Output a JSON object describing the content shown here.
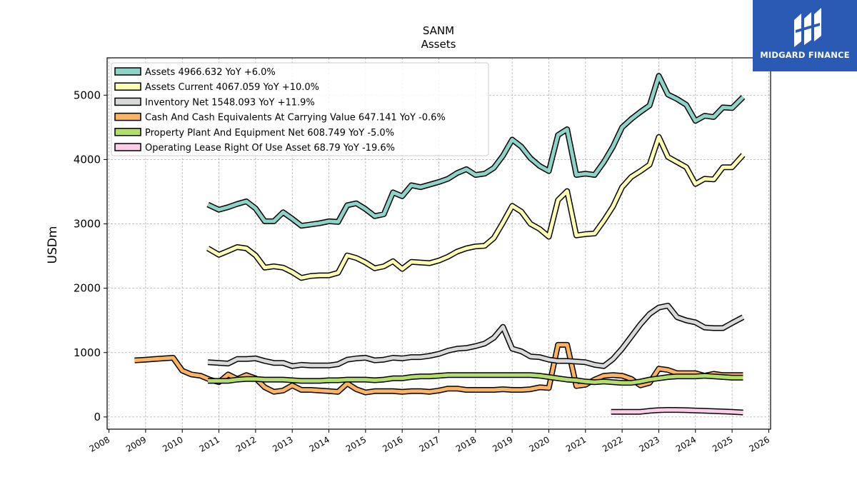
{
  "chart_data": {
    "type": "line",
    "title": "SANM",
    "subtitle": "Assets",
    "xlabel": "",
    "ylabel": "USDm",
    "xlim": [
      2007.95,
      2026.05
    ],
    "ylim": [
      -190,
      5580
    ],
    "x_ticks": [
      2008,
      2009,
      2010,
      2011,
      2012,
      2013,
      2014,
      2015,
      2016,
      2017,
      2018,
      2019,
      2020,
      2021,
      2022,
      2023,
      2024,
      2025,
      2026
    ],
    "y_ticks": [
      0,
      1000,
      2000,
      3000,
      4000,
      5000
    ],
    "grid": true,
    "legend_position": "top-left",
    "series": [
      {
        "name": "Assets",
        "label": "Assets  4966.632 YoY +6.0%",
        "color": "#8dd3c7",
        "x": [
          2010.7,
          2011.0,
          2011.25,
          2011.5,
          2011.75,
          2012.0,
          2012.25,
          2012.5,
          2012.75,
          2013.0,
          2013.25,
          2013.5,
          2013.75,
          2014.0,
          2014.25,
          2014.5,
          2014.75,
          2015.0,
          2015.25,
          2015.5,
          2015.75,
          2016.0,
          2016.25,
          2016.5,
          2016.75,
          2017.0,
          2017.25,
          2017.5,
          2017.75,
          2018.0,
          2018.25,
          2018.5,
          2018.75,
          2019.0,
          2019.25,
          2019.5,
          2019.75,
          2020.0,
          2020.25,
          2020.5,
          2020.75,
          2021.0,
          2021.25,
          2021.5,
          2021.75,
          2022.0,
          2022.25,
          2022.5,
          2022.75,
          2023.0,
          2023.25,
          2023.5,
          2023.75,
          2024.0,
          2024.25,
          2024.5,
          2024.75,
          2025.0,
          2025.3
        ],
        "values": [
          3300,
          3220,
          3260,
          3310,
          3350,
          3240,
          3040,
          3040,
          3180,
          3080,
          2970,
          2990,
          3010,
          3040,
          3030,
          3290,
          3320,
          3230,
          3120,
          3150,
          3490,
          3430,
          3600,
          3570,
          3610,
          3650,
          3700,
          3790,
          3850,
          3760,
          3780,
          3870,
          4060,
          4310,
          4200,
          4020,
          3900,
          3820,
          4380,
          4470,
          3760,
          3780,
          3760,
          3960,
          4200,
          4500,
          4630,
          4740,
          4840,
          5300,
          5010,
          4940,
          4850,
          4600,
          4680,
          4660,
          4810,
          4800,
          4970
        ]
      },
      {
        "name": "Assets Current",
        "label": "Assets Current  4067.059 YoY +10.0%",
        "color": "#ffffb3",
        "x": [
          2010.7,
          2011.0,
          2011.25,
          2011.5,
          2011.75,
          2012.0,
          2012.25,
          2012.5,
          2012.75,
          2013.0,
          2013.25,
          2013.5,
          2013.75,
          2014.0,
          2014.25,
          2014.5,
          2014.75,
          2015.0,
          2015.25,
          2015.5,
          2015.75,
          2016.0,
          2016.25,
          2016.5,
          2016.75,
          2017.0,
          2017.25,
          2017.5,
          2017.75,
          2018.0,
          2018.25,
          2018.5,
          2018.75,
          2019.0,
          2019.25,
          2019.5,
          2019.75,
          2020.0,
          2020.25,
          2020.5,
          2020.75,
          2021.0,
          2021.25,
          2021.5,
          2021.75,
          2022.0,
          2022.25,
          2022.5,
          2022.75,
          2023.0,
          2023.25,
          2023.5,
          2023.75,
          2024.0,
          2024.25,
          2024.5,
          2024.75,
          2025.0,
          2025.3
        ],
        "values": [
          2620,
          2520,
          2580,
          2640,
          2620,
          2510,
          2320,
          2340,
          2320,
          2250,
          2160,
          2190,
          2200,
          2200,
          2240,
          2510,
          2470,
          2400,
          2310,
          2340,
          2420,
          2300,
          2410,
          2400,
          2390,
          2430,
          2490,
          2570,
          2620,
          2650,
          2660,
          2780,
          3020,
          3280,
          3190,
          3000,
          2920,
          2800,
          3370,
          3510,
          2820,
          2840,
          2850,
          3050,
          3270,
          3570,
          3730,
          3820,
          3920,
          4350,
          4040,
          3960,
          3880,
          3620,
          3700,
          3690,
          3880,
          3880,
          4070
        ]
      },
      {
        "name": "Inventory Net",
        "label": "Inventory Net  1548.093 YoY +11.9%",
        "color": "#d9d9d9",
        "x": [
          2010.7,
          2011.0,
          2011.25,
          2011.5,
          2011.75,
          2012.0,
          2012.25,
          2012.5,
          2012.75,
          2013.0,
          2013.25,
          2013.5,
          2013.75,
          2014.0,
          2014.25,
          2014.5,
          2014.75,
          2015.0,
          2015.25,
          2015.5,
          2015.75,
          2016.0,
          2016.25,
          2016.5,
          2016.75,
          2017.0,
          2017.25,
          2017.5,
          2017.75,
          2018.0,
          2018.25,
          2018.5,
          2018.75,
          2019.0,
          2019.25,
          2019.5,
          2019.75,
          2020.0,
          2020.25,
          2020.5,
          2020.75,
          2021.0,
          2021.25,
          2021.5,
          2021.75,
          2022.0,
          2022.25,
          2022.5,
          2022.75,
          2023.0,
          2023.25,
          2023.5,
          2023.75,
          2024.0,
          2024.25,
          2024.5,
          2024.75,
          2025.0,
          2025.3
        ],
        "values": [
          850,
          840,
          830,
          900,
          900,
          910,
          870,
          840,
          840,
          790,
          810,
          800,
          800,
          800,
          820,
          890,
          910,
          920,
          880,
          890,
          920,
          910,
          930,
          930,
          950,
          980,
          1030,
          1060,
          1070,
          1100,
          1140,
          1230,
          1400,
          1060,
          1020,
          940,
          930,
          890,
          870,
          870,
          860,
          850,
          810,
          790,
          900,
          1060,
          1250,
          1440,
          1600,
          1700,
          1730,
          1550,
          1500,
          1470,
          1390,
          1380,
          1380,
          1460,
          1550
        ]
      },
      {
        "name": "Cash And Cash Equivalents At Carrying Value",
        "label": "Cash And Cash Equivalents At Carrying Value  647.141 YoY -0.6%",
        "color": "#fdb462",
        "x": [
          2008.7,
          2009.0,
          2009.25,
          2009.5,
          2009.75,
          2010.0,
          2010.25,
          2010.5,
          2010.75,
          2011.0,
          2011.25,
          2011.5,
          2011.75,
          2012.0,
          2012.25,
          2012.5,
          2012.75,
          2013.0,
          2013.25,
          2013.5,
          2013.75,
          2014.0,
          2014.25,
          2014.5,
          2014.75,
          2015.0,
          2015.25,
          2015.5,
          2015.75,
          2016.0,
          2016.25,
          2016.5,
          2016.75,
          2017.0,
          2017.25,
          2017.5,
          2017.75,
          2018.0,
          2018.25,
          2018.5,
          2018.75,
          2019.0,
          2019.25,
          2019.5,
          2019.75,
          2020.0,
          2020.25,
          2020.5,
          2020.75,
          2021.0,
          2021.25,
          2021.5,
          2021.75,
          2022.0,
          2022.25,
          2022.5,
          2022.75,
          2023.0,
          2023.25,
          2023.5,
          2023.75,
          2024.0,
          2024.25,
          2024.5,
          2024.75,
          2025.0,
          2025.3
        ],
        "values": [
          880,
          890,
          900,
          910,
          920,
          720,
          660,
          640,
          580,
          540,
          660,
          590,
          650,
          600,
          460,
          390,
          410,
          490,
          420,
          420,
          410,
          400,
          390,
          520,
          430,
          380,
          400,
          400,
          400,
          390,
          400,
          400,
          390,
          410,
          440,
          440,
          420,
          420,
          420,
          420,
          430,
          420,
          420,
          430,
          460,
          450,
          1120,
          1120,
          480,
          500,
          580,
          640,
          650,
          640,
          590,
          490,
          530,
          750,
          730,
          680,
          680,
          680,
          640,
          670,
          650,
          650,
          650
        ]
      },
      {
        "name": "Property Plant And Equipment Net",
        "label": "Property Plant And Equipment Net  608.749 YoY -5.0%",
        "color": "#b3de69",
        "x": [
          2010.7,
          2011.0,
          2011.25,
          2011.5,
          2011.75,
          2012.0,
          2012.25,
          2012.5,
          2012.75,
          2013.0,
          2013.25,
          2013.5,
          2013.75,
          2014.0,
          2014.25,
          2014.5,
          2014.75,
          2015.0,
          2015.25,
          2015.5,
          2015.75,
          2016.0,
          2016.25,
          2016.5,
          2016.75,
          2017.0,
          2017.25,
          2017.5,
          2017.75,
          2018.0,
          2018.25,
          2018.5,
          2018.75,
          2019.0,
          2019.25,
          2019.5,
          2019.75,
          2020.0,
          2020.25,
          2020.5,
          2020.75,
          2021.0,
          2021.25,
          2021.5,
          2021.75,
          2022.0,
          2022.25,
          2022.5,
          2022.75,
          2023.0,
          2023.25,
          2023.5,
          2023.75,
          2024.0,
          2024.25,
          2024.5,
          2024.75,
          2025.0,
          2025.3
        ],
        "values": [
          560,
          560,
          560,
          580,
          590,
          590,
          580,
          580,
          580,
          570,
          560,
          560,
          560,
          570,
          570,
          580,
          580,
          580,
          570,
          580,
          600,
          600,
          620,
          630,
          630,
          640,
          650,
          650,
          650,
          650,
          650,
          650,
          650,
          650,
          650,
          650,
          640,
          620,
          600,
          580,
          570,
          550,
          540,
          550,
          540,
          530,
          530,
          550,
          580,
          600,
          620,
          630,
          630,
          630,
          640,
          630,
          620,
          610,
          610
        ]
      },
      {
        "name": "Operating Lease Right Of Use Asset",
        "label": "Operating Lease Right Of Use Asset  68.79 YoY -19.6%",
        "color": "#fccde5",
        "x": [
          2021.7,
          2022.0,
          2022.25,
          2022.5,
          2022.75,
          2023.0,
          2023.25,
          2023.5,
          2023.75,
          2024.0,
          2024.25,
          2024.5,
          2024.75,
          2025.0,
          2025.3
        ],
        "values": [
          80,
          80,
          80,
          80,
          95,
          105,
          110,
          108,
          105,
          100,
          95,
          90,
          85,
          80,
          70
        ]
      }
    ]
  },
  "logo": {
    "text": "MIDGARD FINANCE",
    "background": "#2a5ab4"
  }
}
